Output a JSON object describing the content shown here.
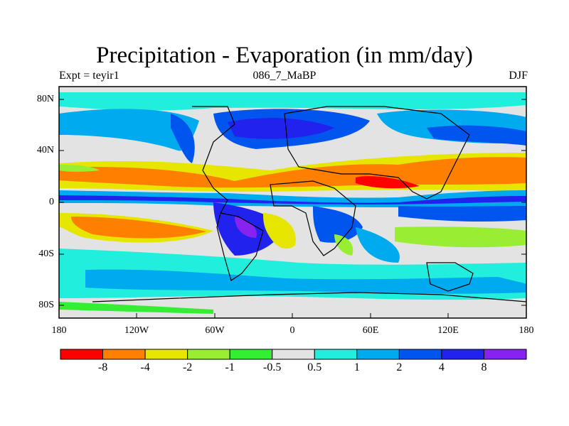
{
  "title": "Precipitation - Evaporation (in mm/day)",
  "experiment": "Expt = teyir1",
  "run_label": "086_7_MaBP",
  "season": "DJF",
  "lat_ticks": [
    "80N",
    "40N",
    "0",
    "40S",
    "80S"
  ],
  "lon_ticks": [
    "180",
    "120W",
    "60W",
    "0",
    "60E",
    "120E",
    "180"
  ],
  "colorbar": {
    "colors": [
      "#ff0000",
      "#ff8000",
      "#e6e600",
      "#99ee33",
      "#33ee33",
      "#e3e3e3",
      "#22eedd",
      "#00aaee",
      "#0055ee",
      "#2222ee",
      "#8822ee"
    ],
    "labels": [
      "-8",
      "-4",
      "-2",
      "-1",
      "-0.5",
      "0.5",
      "1",
      "2",
      "4",
      "8"
    ]
  },
  "colors": {
    "land_outline": "#000000",
    "frame": "#000000"
  }
}
